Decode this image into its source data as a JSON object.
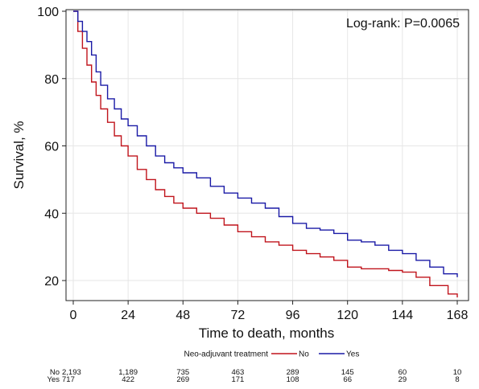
{
  "chart_data": {
    "type": "line",
    "xlabel": "Time to death, months",
    "ylabel": "Survival, %",
    "annotation": "Log-rank: P=0.0065",
    "xlim": [
      0,
      168
    ],
    "ylim": [
      15,
      100
    ],
    "xticks": [
      0,
      24,
      48,
      72,
      96,
      120,
      144,
      168
    ],
    "yticks": [
      20,
      40,
      60,
      80,
      100
    ],
    "grid": true,
    "legend": {
      "title": "Neo-adjuvant treatment",
      "placement": "bottom"
    },
    "series": [
      {
        "name": "No",
        "color": "#c0141c",
        "x": [
          0,
          2,
          4,
          6,
          8,
          10,
          12,
          15,
          18,
          21,
          24,
          28,
          32,
          36,
          40,
          44,
          48,
          54,
          60,
          66,
          72,
          78,
          84,
          90,
          96,
          102,
          108,
          114,
          120,
          126,
          132,
          138,
          144,
          150,
          156,
          162,
          164,
          168
        ],
        "y": [
          100,
          94,
          89,
          84,
          79,
          75,
          71,
          67,
          63,
          60,
          57,
          53,
          50,
          47,
          45,
          43,
          41.5,
          40,
          38.5,
          36.5,
          34.5,
          33,
          31.5,
          30.5,
          29,
          28,
          27,
          26,
          24,
          23.5,
          23.5,
          23,
          22.5,
          21,
          18.5,
          18.5,
          16,
          15
        ]
      },
      {
        "name": "Yes",
        "color": "#1a1aa6",
        "x": [
          0,
          2,
          4,
          6,
          8,
          10,
          12,
          15,
          18,
          21,
          24,
          28,
          32,
          36,
          40,
          44,
          48,
          54,
          60,
          66,
          72,
          78,
          84,
          90,
          96,
          102,
          108,
          114,
          120,
          126,
          132,
          138,
          144,
          150,
          156,
          162,
          168
        ],
        "y": [
          100,
          97,
          94,
          91,
          87,
          82,
          78,
          74,
          71,
          68,
          66,
          63,
          60,
          57,
          55,
          53.5,
          52,
          50.5,
          48,
          46,
          44.5,
          43,
          41.5,
          39,
          37,
          35.5,
          35,
          34,
          32,
          31.5,
          30.5,
          29,
          28,
          26,
          24,
          22,
          21
        ]
      }
    ],
    "risk_table": {
      "rows": [
        {
          "label": "No",
          "values": [
            "2,193",
            "1,189",
            "735",
            "463",
            "289",
            "145",
            "60",
            "10"
          ]
        },
        {
          "label": "Yes",
          "values": [
            "717",
            "422",
            "269",
            "171",
            "108",
            "66",
            "29",
            "8"
          ]
        }
      ]
    }
  }
}
